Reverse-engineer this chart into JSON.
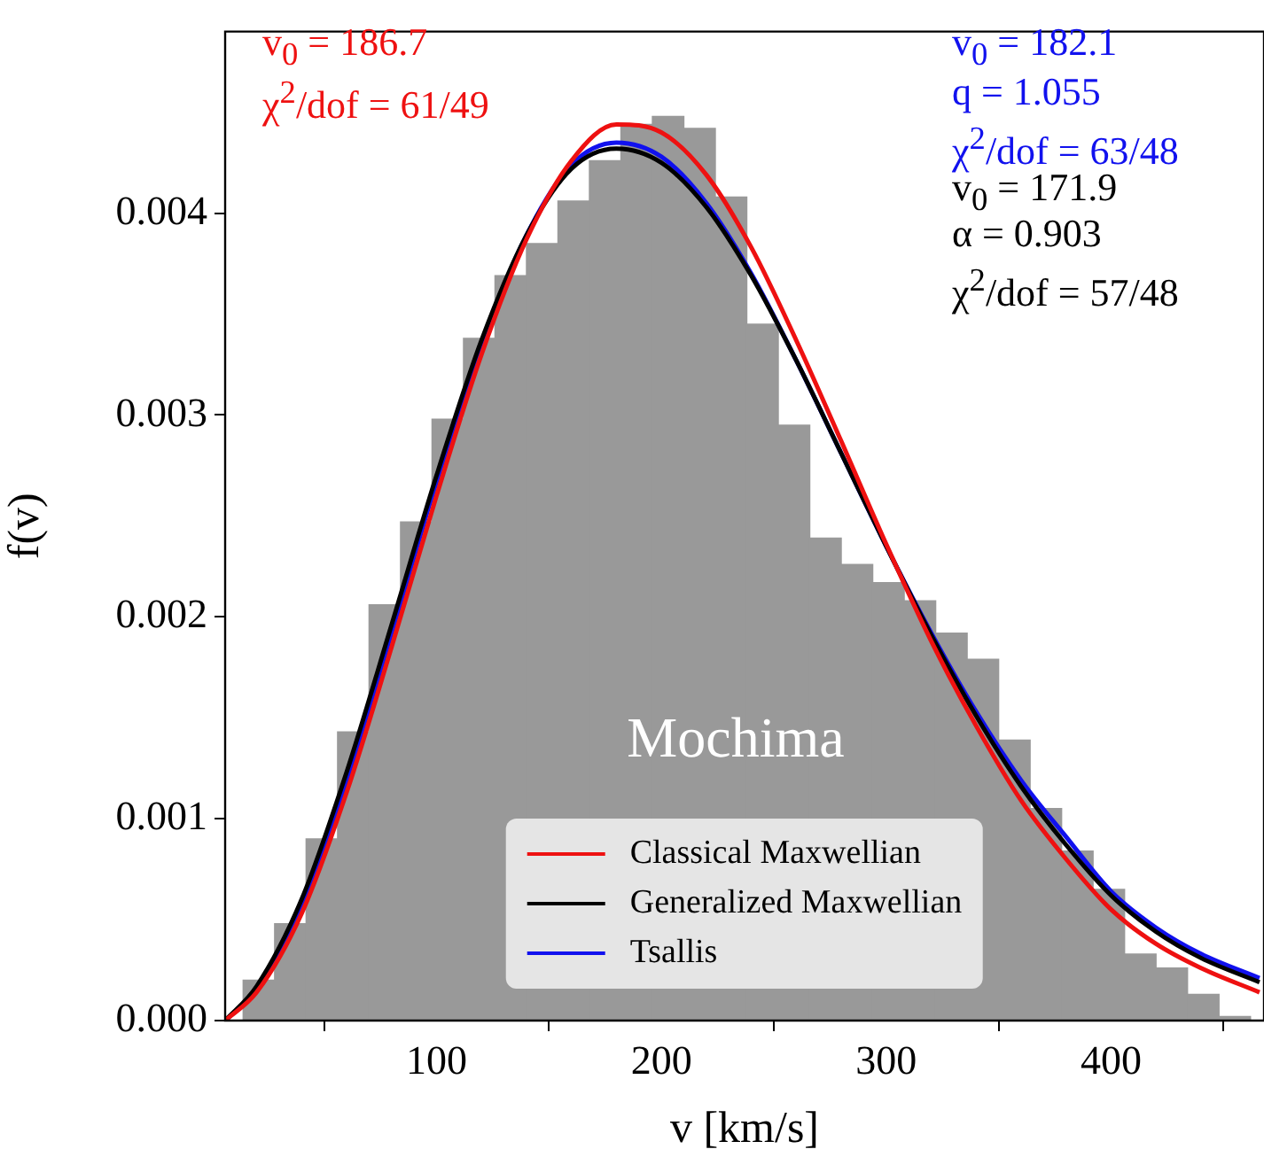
{
  "chart_data": {
    "type": "histogram",
    "xlabel": "v [km/s]",
    "ylabel": "f(v)",
    "color": "#999999",
    "bins": [
      14,
      28,
      42,
      56,
      70,
      84,
      98,
      112,
      126,
      140,
      154,
      168,
      182,
      196,
      210,
      224,
      238,
      252,
      266,
      280,
      294,
      308,
      322,
      336,
      350,
      364,
      378,
      392,
      406,
      420,
      434,
      448,
      462
    ],
    "values": [
      0.0002,
      0.00048,
      0.0009,
      0.00143,
      0.00206,
      0.00247,
      0.00298,
      0.00338,
      0.00369,
      0.00385,
      0.00406,
      0.00426,
      0.00444,
      0.00448,
      0.00442,
      0.00408,
      0.00345,
      0.00295,
      0.00239,
      0.00226,
      0.00217,
      0.00208,
      0.00192,
      0.00179,
      0.00139,
      0.00105,
      0.00084,
      0.00065,
      0.00033,
      0.00026,
      0.00013,
      2e-05
    ],
    "series": [
      {
        "type": "line",
        "name": "Classical Maxwellian",
        "color": "#ee1111",
        "x": [
          6,
          20,
          40,
          60,
          80,
          100,
          120,
          140,
          160,
          180,
          200,
          220,
          240,
          260,
          280,
          300,
          320,
          340,
          360,
          380,
          400,
          420,
          440,
          466
        ],
        "values": [
          0,
          0.00014,
          0.00053,
          0.00113,
          0.00185,
          0.0026,
          0.0033,
          0.00387,
          0.00426,
          0.00444,
          0.0044,
          0.00419,
          0.00383,
          0.00337,
          0.00287,
          0.00236,
          0.00188,
          0.00146,
          0.00109,
          0.0008,
          0.00055,
          0.00038,
          0.00026,
          0.00014
        ]
      },
      {
        "type": "line",
        "name": "Generalized Maxwellian",
        "color": "#000000",
        "x": [
          6,
          20,
          40,
          60,
          80,
          100,
          120,
          140,
          160,
          180,
          200,
          220,
          240,
          260,
          280,
          300,
          320,
          340,
          360,
          380,
          400,
          420,
          440,
          466
        ],
        "values": [
          0,
          0.00017,
          0.0006,
          0.00123,
          0.00196,
          0.0027,
          0.00337,
          0.00389,
          0.00422,
          0.00432,
          0.00425,
          0.00403,
          0.00369,
          0.00327,
          0.00281,
          0.00235,
          0.00191,
          0.00151,
          0.00116,
          0.00087,
          0.00062,
          0.00044,
          0.00031,
          0.00019
        ]
      },
      {
        "type": "line",
        "name": "Tsallis",
        "color": "#1111ee",
        "x": [
          6,
          20,
          40,
          60,
          80,
          100,
          120,
          140,
          160,
          180,
          200,
          220,
          240,
          260,
          280,
          300,
          320,
          340,
          360,
          380,
          400,
          420,
          440,
          466
        ],
        "values": [
          0,
          0.00015,
          0.00057,
          0.00119,
          0.00192,
          0.00267,
          0.00335,
          0.00389,
          0.00424,
          0.00435,
          0.00428,
          0.00405,
          0.0037,
          0.00327,
          0.00281,
          0.00235,
          0.00192,
          0.00153,
          0.00119,
          0.00091,
          0.00064,
          0.00046,
          0.00033,
          0.00021
        ]
      }
    ],
    "xlim": [
      6,
      468
    ],
    "xticks": [
      100,
      200,
      300,
      400
    ],
    "ylim": [
      0,
      0.0049
    ],
    "yticks": [
      {
        "value": 0,
        "label": "0.000"
      },
      0.001,
      0.002,
      0.003,
      0.004
    ],
    "grid": false,
    "legend": "bottom",
    "marker": "none",
    "line_style": "solid",
    "annotations": [
      "v$_{0}$ = 186.7",
      "χ$^{2}$/dof = 61/49",
      "v$_{0}$ = 182.1",
      "q = 1.055",
      "χ$^{2}$/dof = 63/48",
      "v$_{0}$ = 171.9",
      "α = 0.903",
      "χ$^{2}$/dof = 57/48",
      "Mochima"
    ]
  }
}
